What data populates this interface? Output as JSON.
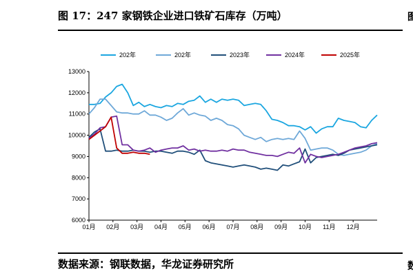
{
  "figure": {
    "title": "图 17：247 家钢铁企业进口铁矿石库存（万吨）",
    "source": "数据来源：钢联数据，华龙证券研究所",
    "edge_glyph_top": "图",
    "edge_glyph_bottom": "数"
  },
  "chart_data": {
    "type": "line",
    "title": "",
    "xlabel": "",
    "ylabel": "",
    "ylim": [
      6000,
      13000
    ],
    "yticks": [
      6000,
      7000,
      8000,
      9000,
      10000,
      11000,
      12000,
      13000
    ],
    "ytick_labels": [
      "6000",
      "7000",
      "8000",
      "9000",
      "10000",
      "11000",
      "12000",
      "13000"
    ],
    "xlim": [
      0,
      52
    ],
    "xticks": [
      0,
      4.33,
      8.67,
      13,
      17.33,
      21.67,
      26,
      30.33,
      34.67,
      39,
      43.33,
      47.67
    ],
    "xtick_labels": [
      "01月",
      "02月",
      "03月",
      "04月",
      "05月",
      "06月",
      "07月",
      "08月",
      "09月",
      "10月",
      "11月",
      "12月"
    ],
    "x_unit": "week of year",
    "grid": false,
    "legend_position": "top",
    "series": [
      {
        "name": "202年",
        "color": "#1aa6e0",
        "x": [
          0,
          1,
          2,
          3,
          4,
          5,
          6,
          7,
          8,
          9,
          10,
          11,
          12,
          13,
          14,
          15,
          16,
          17,
          18,
          19,
          20,
          21,
          22,
          23,
          24,
          25,
          26,
          27,
          28,
          29,
          30,
          31,
          32,
          33,
          34,
          35,
          36,
          37,
          38,
          39,
          40,
          41,
          42,
          43,
          44,
          45,
          46,
          47,
          48,
          49,
          50,
          51,
          52
        ],
        "values": [
          11450,
          11450,
          11500,
          11800,
          12000,
          12300,
          12400,
          12000,
          11400,
          11550,
          11350,
          11450,
          11350,
          11300,
          11400,
          11350,
          11500,
          11450,
          11600,
          11650,
          11850,
          11550,
          11700,
          11550,
          11700,
          11650,
          11700,
          11650,
          11400,
          11450,
          11500,
          11450,
          11150,
          10750,
          10700,
          10600,
          10450,
          10450,
          10400,
          10250,
          10400,
          10100,
          10300,
          10400,
          10400,
          10800,
          10700,
          10650,
          10600,
          10400,
          10350,
          10700,
          10950
        ]
      },
      {
        "name": "202年",
        "color": "#6ea8d8",
        "x": [
          0,
          1,
          2,
          3,
          4,
          5,
          6,
          7,
          8,
          9,
          10,
          11,
          12,
          13,
          14,
          15,
          16,
          17,
          18,
          19,
          20,
          21,
          22,
          23,
          24,
          25,
          26,
          27,
          28,
          29,
          30,
          31,
          32,
          33,
          34,
          35,
          36,
          37,
          38,
          39,
          40,
          41,
          42,
          43,
          44,
          45,
          46,
          47,
          48,
          49,
          50,
          51,
          52
        ],
        "values": [
          11000,
          11300,
          11700,
          11700,
          11400,
          11100,
          11050,
          11050,
          11000,
          11000,
          11150,
          10950,
          10950,
          10850,
          10700,
          10800,
          11050,
          11250,
          10950,
          11050,
          10950,
          10900,
          10700,
          10800,
          10700,
          10500,
          10450,
          10300,
          10000,
          9900,
          9800,
          9900,
          9700,
          9800,
          9850,
          9800,
          9850,
          9800,
          10200,
          9850,
          9300,
          9350,
          9400,
          9400,
          9300,
          9100,
          9050,
          9100,
          9150,
          9200,
          9300,
          9500,
          9600
        ]
      },
      {
        "name": "2023年",
        "color": "#1f4e79",
        "x": [
          0,
          1,
          2,
          3,
          4,
          5,
          6,
          7,
          8,
          9,
          10,
          11,
          12,
          13,
          14,
          15,
          16,
          17,
          18,
          19,
          20,
          21,
          22,
          23,
          24,
          25,
          26,
          27,
          28,
          29,
          30,
          31,
          32,
          33,
          34,
          35,
          36,
          37,
          38,
          39,
          40,
          41,
          42,
          43,
          44,
          45,
          46,
          47,
          48,
          49,
          50,
          51,
          52
        ],
        "values": [
          9900,
          10150,
          10300,
          9250,
          9250,
          9300,
          9250,
          9250,
          9300,
          9250,
          9250,
          9200,
          9250,
          9250,
          9200,
          9150,
          9250,
          9250,
          9200,
          9100,
          9300,
          8800,
          8700,
          8650,
          8600,
          8550,
          8500,
          8550,
          8600,
          8550,
          8500,
          8400,
          8450,
          8400,
          8350,
          8600,
          8550,
          8650,
          8750,
          9350,
          8700,
          8950,
          9000,
          9050,
          9100,
          9050,
          9150,
          9300,
          9350,
          9400,
          9450,
          9500,
          9550
        ]
      },
      {
        "name": "2024年",
        "color": "#7030a0",
        "x": [
          0,
          1,
          2,
          3,
          4,
          5,
          6,
          7,
          8,
          9,
          10,
          11,
          12,
          13,
          14,
          15,
          16,
          17,
          18,
          19,
          20,
          21,
          22,
          23,
          24,
          25,
          26,
          27,
          28,
          29,
          30,
          31,
          32,
          33,
          34,
          35,
          36,
          37,
          38,
          39,
          40,
          41,
          42,
          43,
          44,
          45,
          46,
          47,
          48,
          49,
          50,
          51,
          52
        ],
        "values": [
          9850,
          10050,
          10350,
          10400,
          10850,
          10900,
          9550,
          9550,
          9300,
          9250,
          9300,
          9400,
          9200,
          9300,
          9350,
          9400,
          9400,
          9500,
          9300,
          9350,
          9250,
          9300,
          9250,
          9250,
          9300,
          9250,
          9350,
          9300,
          9300,
          9200,
          9150,
          9100,
          9050,
          9050,
          9000,
          9100,
          9200,
          9150,
          9400,
          8700,
          9100,
          9000,
          8950,
          9000,
          9050,
          9100,
          9200,
          9300,
          9400,
          9450,
          9500,
          9600,
          9650
        ]
      },
      {
        "name": "2025年",
        "color": "#c00000",
        "x": [
          0,
          1,
          2,
          3,
          4,
          5,
          6,
          7,
          8,
          9,
          10,
          11
        ],
        "values": [
          9800,
          10000,
          10200,
          10400,
          10850,
          9400,
          9150,
          9150,
          9200,
          9150,
          9150,
          9100
        ]
      }
    ]
  }
}
